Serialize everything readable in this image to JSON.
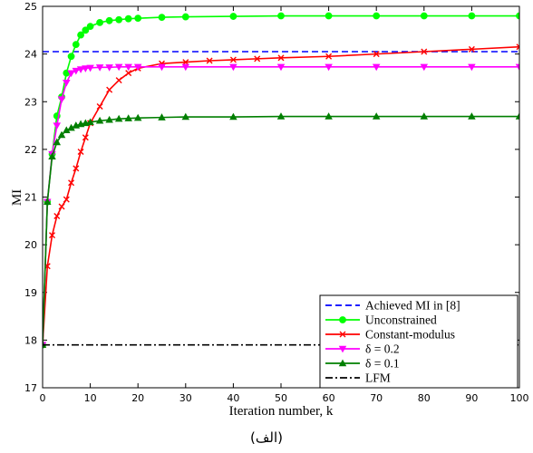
{
  "caption": "(الف)",
  "chart_data": {
    "type": "line",
    "title": "",
    "xlabel": "Iteration number, k",
    "ylabel": "MI",
    "xlim": [
      0,
      100
    ],
    "ylim": [
      17,
      25
    ],
    "xticks": [
      0,
      10,
      20,
      30,
      40,
      50,
      60,
      70,
      80,
      90,
      100
    ],
    "yticks": [
      17,
      18,
      19,
      20,
      21,
      22,
      23,
      24,
      25
    ],
    "grid": false,
    "legend_position": "bottom-right",
    "series": [
      {
        "name": "Achieved MI in [8]",
        "color": "#0000ff",
        "style": "dashed",
        "marker": "none",
        "x": [
          0,
          100
        ],
        "y": [
          24.05,
          24.05
        ]
      },
      {
        "name": "Unconstrained",
        "color": "#00ff00",
        "style": "solid",
        "marker": "circle",
        "x": [
          0,
          1,
          2,
          3,
          4,
          5,
          6,
          7,
          8,
          9,
          10,
          12,
          14,
          16,
          18,
          20,
          25,
          30,
          40,
          50,
          60,
          70,
          80,
          90,
          100
        ],
        "y": [
          17.9,
          20.9,
          21.9,
          22.7,
          23.1,
          23.6,
          23.95,
          24.2,
          24.4,
          24.5,
          24.58,
          24.66,
          24.7,
          24.72,
          24.74,
          24.75,
          24.77,
          24.78,
          24.79,
          24.8,
          24.8,
          24.8,
          24.8,
          24.8,
          24.8
        ]
      },
      {
        "name": "Constant-modulus",
        "color": "#ff0000",
        "style": "solid",
        "marker": "x",
        "x": [
          0,
          1,
          2,
          3,
          4,
          5,
          6,
          7,
          8,
          9,
          10,
          12,
          14,
          16,
          18,
          20,
          25,
          30,
          35,
          40,
          45,
          50,
          60,
          70,
          80,
          90,
          100
        ],
        "y": [
          17.9,
          19.55,
          20.2,
          20.6,
          20.8,
          20.95,
          21.3,
          21.6,
          21.95,
          22.25,
          22.55,
          22.9,
          23.25,
          23.45,
          23.6,
          23.7,
          23.8,
          23.83,
          23.86,
          23.88,
          23.9,
          23.92,
          23.95,
          24.0,
          24.05,
          24.1,
          24.15
        ]
      },
      {
        "name": "δ = 0.2",
        "color": "#ff00ff",
        "style": "solid",
        "marker": "triangle-down",
        "x": [
          0,
          1,
          2,
          3,
          4,
          5,
          6,
          7,
          8,
          9,
          10,
          12,
          14,
          16,
          18,
          20,
          25,
          30,
          40,
          50,
          60,
          70,
          80,
          90,
          100
        ],
        "y": [
          17.9,
          20.9,
          21.9,
          22.5,
          23.05,
          23.4,
          23.6,
          23.65,
          23.68,
          23.7,
          23.71,
          23.72,
          23.72,
          23.73,
          23.73,
          23.73,
          23.73,
          23.73,
          23.73,
          23.73,
          23.73,
          23.73,
          23.73,
          23.73,
          23.73
        ]
      },
      {
        "name": "δ = 0.1",
        "color": "#007f00",
        "style": "solid",
        "marker": "triangle-up",
        "x": [
          0,
          1,
          2,
          3,
          4,
          5,
          6,
          7,
          8,
          9,
          10,
          12,
          14,
          16,
          18,
          20,
          25,
          30,
          40,
          50,
          60,
          70,
          80,
          90,
          100
        ],
        "y": [
          17.9,
          20.9,
          21.85,
          22.15,
          22.3,
          22.4,
          22.45,
          22.5,
          22.53,
          22.55,
          22.57,
          22.6,
          22.62,
          22.64,
          22.65,
          22.66,
          22.67,
          22.68,
          22.68,
          22.69,
          22.69,
          22.69,
          22.69,
          22.69,
          22.69
        ]
      },
      {
        "name": "LFM",
        "color": "#000000",
        "style": "dashdot",
        "marker": "none",
        "x": [
          0,
          100
        ],
        "y": [
          17.9,
          17.9
        ]
      }
    ]
  }
}
